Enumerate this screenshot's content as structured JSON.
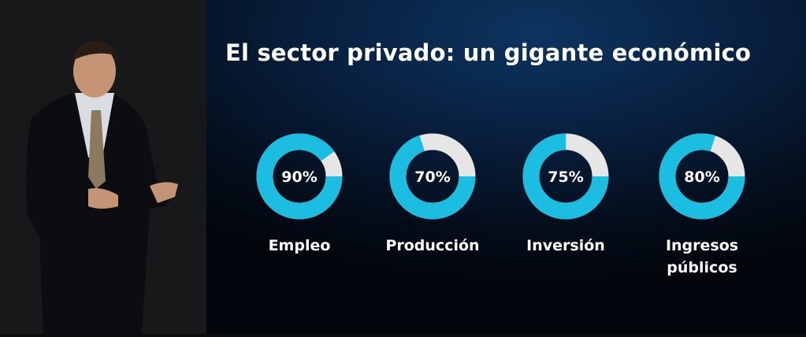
{
  "slide": {
    "title": "El sector privado: un gigante económico"
  },
  "colors": {
    "filled": "#1bbde0",
    "remaining": "#e6e6e6",
    "background": "#08203f"
  },
  "chart_data": {
    "type": "pie",
    "variant": "donut",
    "title": "El sector privado: un gigante económico",
    "categories": [
      "Empleo",
      "Producción",
      "Inversión",
      "Ingresos públicos"
    ],
    "values": [
      90,
      70,
      75,
      80
    ],
    "unit": "%",
    "data_labels": [
      "90%",
      "70%",
      "75%",
      "80%"
    ],
    "category_lines": [
      [
        "Empleo"
      ],
      [
        "Producción"
      ],
      [
        "Inversión"
      ],
      [
        "Ingresos",
        "públicos"
      ]
    ]
  }
}
